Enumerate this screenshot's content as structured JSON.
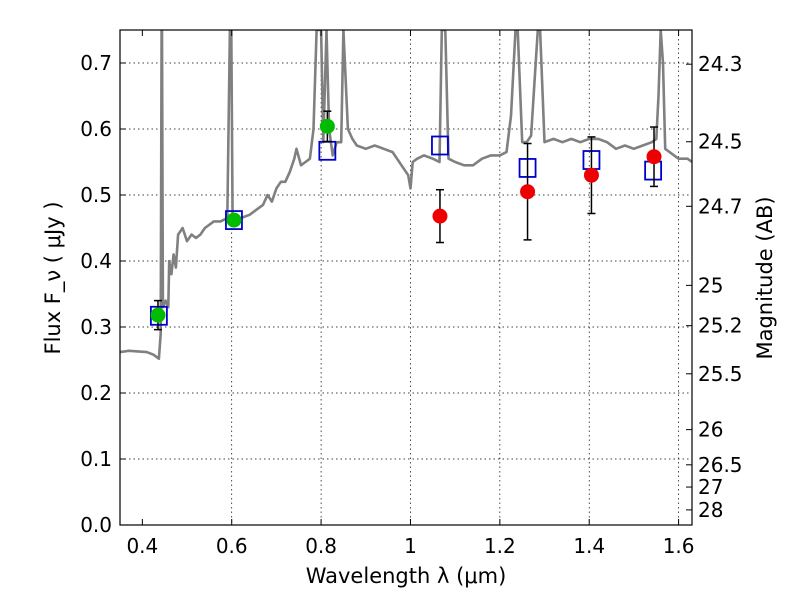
{
  "chart_data": {
    "type": "scatter",
    "title": "",
    "xlabel": "Wavelength  λ (μm)",
    "ylabel": "Flux  F_ν  ( μJy )",
    "ylabel_right": "Magnitude (AB)",
    "xlim": [
      0.35,
      1.63
    ],
    "ylim": [
      0.0,
      0.75
    ],
    "grid": true,
    "x_ticks": [
      0.4,
      0.6,
      0.8,
      1.0,
      1.2,
      1.4,
      1.6
    ],
    "x_tick_labels": [
      "0.4",
      "0.6",
      "0.8",
      "1",
      "1.2",
      "1.4",
      "1.6"
    ],
    "y_ticks": [
      0.0,
      0.1,
      0.2,
      0.3,
      0.4,
      0.5,
      0.6,
      0.7
    ],
    "y_tick_labels": [
      "0.0",
      "0.1",
      "0.2",
      "0.3",
      "0.4",
      "0.5",
      "0.6",
      "0.7"
    ],
    "right_ticks": [
      {
        "flux": 0.6982,
        "label": "24.3"
      },
      {
        "flux": 0.5807,
        "label": "24.5"
      },
      {
        "flux": 0.4829,
        "label": "24.7"
      },
      {
        "flux": 0.3631,
        "label": "25"
      },
      {
        "flux": 0.302,
        "label": "25.2"
      },
      {
        "flux": 0.2291,
        "label": "25.5"
      },
      {
        "flux": 0.1445,
        "label": "26"
      },
      {
        "flux": 0.0912,
        "label": "26.5"
      },
      {
        "flux": 0.0575,
        "label": "27"
      },
      {
        "flux": 0.0229,
        "label": "28"
      }
    ],
    "model_spectrum": {
      "color": "#808080",
      "points": [
        [
          0.35,
          0.262
        ],
        [
          0.37,
          0.264
        ],
        [
          0.39,
          0.263
        ],
        [
          0.41,
          0.262
        ],
        [
          0.425,
          0.258
        ],
        [
          0.437,
          0.252
        ],
        [
          0.441,
          0.29
        ],
        [
          0.443,
          0.75
        ],
        [
          0.444,
          0.75
        ],
        [
          0.446,
          0.33
        ],
        [
          0.452,
          0.34
        ],
        [
          0.458,
          0.33
        ],
        [
          0.46,
          0.4
        ],
        [
          0.465,
          0.38
        ],
        [
          0.47,
          0.41
        ],
        [
          0.475,
          0.39
        ],
        [
          0.48,
          0.44
        ],
        [
          0.49,
          0.45
        ],
        [
          0.5,
          0.43
        ],
        [
          0.51,
          0.44
        ],
        [
          0.52,
          0.435
        ],
        [
          0.53,
          0.44
        ],
        [
          0.54,
          0.45
        ],
        [
          0.55,
          0.455
        ],
        [
          0.56,
          0.46
        ],
        [
          0.575,
          0.46
        ],
        [
          0.59,
          0.465
        ],
        [
          0.596,
          0.75
        ],
        [
          0.599,
          0.75
        ],
        [
          0.602,
          0.462
        ],
        [
          0.62,
          0.465
        ],
        [
          0.64,
          0.47
        ],
        [
          0.66,
          0.48
        ],
        [
          0.67,
          0.485
        ],
        [
          0.68,
          0.5
        ],
        [
          0.69,
          0.49
        ],
        [
          0.7,
          0.51
        ],
        [
          0.71,
          0.52
        ],
        [
          0.72,
          0.52
        ],
        [
          0.73,
          0.535
        ],
        [
          0.74,
          0.555
        ],
        [
          0.745,
          0.57
        ],
        [
          0.755,
          0.545
        ],
        [
          0.765,
          0.55
        ],
        [
          0.775,
          0.555
        ],
        [
          0.783,
          0.6
        ],
        [
          0.79,
          0.75
        ],
        [
          0.8,
          0.75
        ],
        [
          0.805,
          0.58
        ],
        [
          0.812,
          0.75
        ],
        [
          0.818,
          0.6
        ],
        [
          0.826,
          0.56
        ],
        [
          0.835,
          0.58
        ],
        [
          0.845,
          0.58
        ],
        [
          0.85,
          0.75
        ],
        [
          0.86,
          0.6
        ],
        [
          0.87,
          0.585
        ],
        [
          0.88,
          0.575
        ],
        [
          0.9,
          0.57
        ],
        [
          0.92,
          0.575
        ],
        [
          0.94,
          0.57
        ],
        [
          0.96,
          0.565
        ],
        [
          0.98,
          0.545
        ],
        [
          0.995,
          0.53
        ],
        [
          1.0,
          0.51
        ],
        [
          1.005,
          0.55
        ],
        [
          1.015,
          0.555
        ],
        [
          1.03,
          0.56
        ],
        [
          1.05,
          0.555
        ],
        [
          1.065,
          0.55
        ],
        [
          1.07,
          0.75
        ],
        [
          1.078,
          0.75
        ],
        [
          1.085,
          0.555
        ],
        [
          1.1,
          0.55
        ],
        [
          1.12,
          0.545
        ],
        [
          1.14,
          0.545
        ],
        [
          1.16,
          0.555
        ],
        [
          1.18,
          0.56
        ],
        [
          1.2,
          0.56
        ],
        [
          1.215,
          0.565
        ],
        [
          1.225,
          0.62
        ],
        [
          1.235,
          0.75
        ],
        [
          1.24,
          0.75
        ],
        [
          1.25,
          0.58
        ],
        [
          1.26,
          0.58
        ],
        [
          1.27,
          0.59
        ],
        [
          1.285,
          0.75
        ],
        [
          1.29,
          0.75
        ],
        [
          1.3,
          0.58
        ],
        [
          1.32,
          0.585
        ],
        [
          1.34,
          0.58
        ],
        [
          1.36,
          0.585
        ],
        [
          1.38,
          0.58
        ],
        [
          1.4,
          0.585
        ],
        [
          1.42,
          0.585
        ],
        [
          1.44,
          0.58
        ],
        [
          1.46,
          0.57
        ],
        [
          1.48,
          0.575
        ],
        [
          1.5,
          0.57
        ],
        [
          1.52,
          0.575
        ],
        [
          1.54,
          0.58
        ],
        [
          1.55,
          0.585
        ],
        [
          1.555,
          0.65
        ],
        [
          1.56,
          0.75
        ],
        [
          1.565,
          0.7
        ],
        [
          1.57,
          0.57
        ],
        [
          1.59,
          0.56
        ],
        [
          1.6,
          0.555
        ],
        [
          1.62,
          0.555
        ],
        [
          1.63,
          0.55
        ]
      ]
    },
    "series": [
      {
        "marker": "square",
        "color": "#0000cc",
        "points": [
          [
            0.437,
            0.317
          ],
          [
            0.605,
            0.462
          ],
          [
            0.814,
            0.567
          ],
          [
            1.066,
            0.575
          ],
          [
            1.262,
            0.541
          ],
          [
            1.405,
            0.553
          ],
          [
            1.543,
            0.537
          ]
        ]
      },
      {
        "marker": "circle",
        "color": "#00bb00",
        "points": [
          {
            "x": 0.435,
            "y": 0.318,
            "err": 0.022
          },
          {
            "x": 0.605,
            "y": 0.462,
            "err": 0.0
          },
          {
            "x": 0.814,
            "y": 0.604,
            "err": 0.023
          }
        ]
      },
      {
        "marker": "circle",
        "color": "#ee0000",
        "points": [
          {
            "x": 1.066,
            "y": 0.468,
            "err": 0.04
          },
          {
            "x": 1.262,
            "y": 0.505,
            "err": 0.073
          },
          {
            "x": 1.405,
            "y": 0.53,
            "err": 0.058
          },
          {
            "x": 1.545,
            "y": 0.558,
            "err": 0.045
          }
        ]
      }
    ]
  }
}
